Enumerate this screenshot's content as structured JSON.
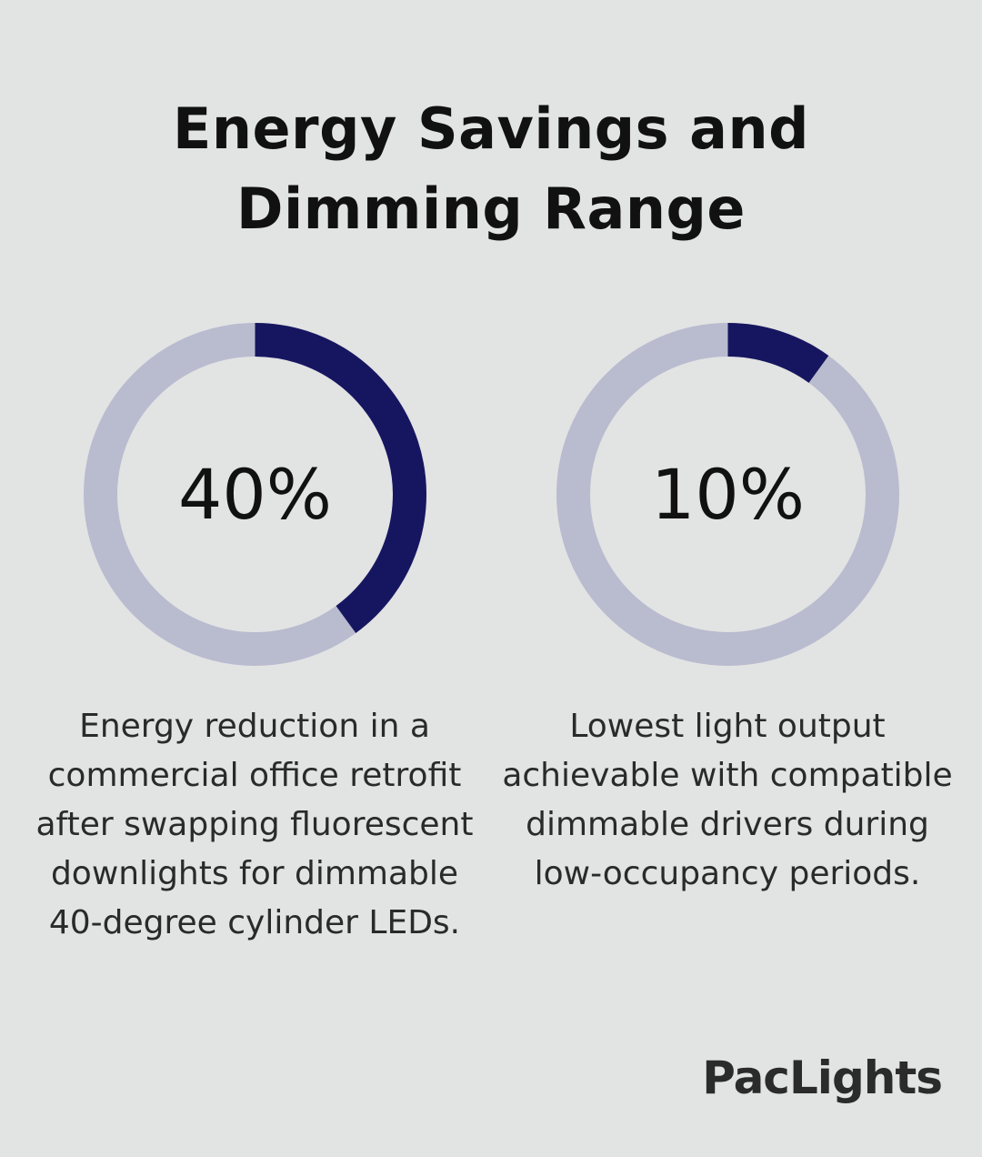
{
  "title": {
    "line1": "Energy Savings and",
    "line2": "Dimming Range"
  },
  "colors": {
    "background": "#e2e3e3",
    "track": "#b9bbcf",
    "fill": "#161660",
    "text": "#111111"
  },
  "chart_data": [
    {
      "type": "pie",
      "style": "donut",
      "value": 40,
      "value_label": "40%",
      "caption": "Energy reduction in a commercial office retrofit after swapping fluorescent downlights for dimmable 40-degree cylinder LEDs."
    },
    {
      "type": "pie",
      "style": "donut",
      "value": 10,
      "value_label": "10%",
      "caption": "Lowest light output achievable with compatible dimmable drivers during low-occupancy periods."
    }
  ],
  "brand": {
    "logo_text": "PacLights"
  }
}
